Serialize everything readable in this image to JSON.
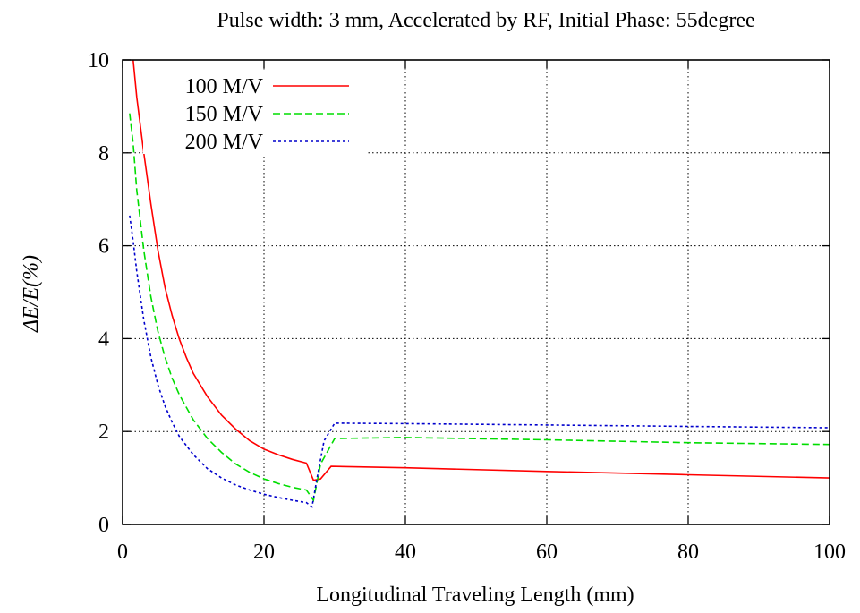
{
  "chart_data": {
    "type": "line",
    "title": "Pulse width: 3 mm, Accelerated by RF, Initial Phase: 55degree",
    "xlabel": "Longitudinal Traveling Length (mm)",
    "ylabel": "ΔE/E(%)",
    "xlim": [
      0,
      100
    ],
    "ylim": [
      0,
      10
    ],
    "xticks": [
      0,
      20,
      40,
      60,
      80,
      100
    ],
    "yticks": [
      0,
      2,
      4,
      6,
      8,
      10
    ],
    "grid": true,
    "legend_position": "top-left",
    "series": [
      {
        "name": "100 M/V",
        "color": "#ff0000",
        "dash": "solid",
        "points": [
          [
            1.5,
            10.0
          ],
          [
            2,
            9.2
          ],
          [
            3,
            8.0
          ],
          [
            4,
            6.9
          ],
          [
            5,
            5.9
          ],
          [
            6,
            5.1
          ],
          [
            7,
            4.5
          ],
          [
            8,
            4.0
          ],
          [
            9,
            3.6
          ],
          [
            10,
            3.25
          ],
          [
            12,
            2.75
          ],
          [
            14,
            2.35
          ],
          [
            16,
            2.05
          ],
          [
            18,
            1.8
          ],
          [
            20,
            1.62
          ],
          [
            22,
            1.5
          ],
          [
            24,
            1.4
          ],
          [
            26,
            1.32
          ],
          [
            27,
            0.95
          ],
          [
            28,
            0.98
          ],
          [
            29.5,
            1.25
          ],
          [
            40,
            1.22
          ],
          [
            60,
            1.14
          ],
          [
            80,
            1.07
          ],
          [
            100,
            1.0
          ]
        ]
      },
      {
        "name": "150 M/V",
        "color": "#00dd00",
        "dash": "dashed",
        "points": [
          [
            1,
            8.85
          ],
          [
            1.5,
            8.2
          ],
          [
            2,
            7.2
          ],
          [
            3,
            5.9
          ],
          [
            4,
            4.9
          ],
          [
            5,
            4.15
          ],
          [
            6,
            3.6
          ],
          [
            7,
            3.15
          ],
          [
            8,
            2.8
          ],
          [
            10,
            2.25
          ],
          [
            12,
            1.85
          ],
          [
            14,
            1.55
          ],
          [
            16,
            1.3
          ],
          [
            18,
            1.12
          ],
          [
            20,
            0.98
          ],
          [
            22,
            0.88
          ],
          [
            24,
            0.8
          ],
          [
            26,
            0.74
          ],
          [
            27,
            0.52
          ],
          [
            28,
            1.3
          ],
          [
            30,
            1.85
          ],
          [
            40,
            1.87
          ],
          [
            60,
            1.82
          ],
          [
            80,
            1.76
          ],
          [
            100,
            1.72
          ]
        ]
      },
      {
        "name": "200 M/V",
        "color": "#0000cc",
        "dash": "dotted",
        "points": [
          [
            1,
            6.65
          ],
          [
            1.5,
            6.1
          ],
          [
            2,
            5.45
          ],
          [
            3,
            4.4
          ],
          [
            4,
            3.6
          ],
          [
            5,
            3.0
          ],
          [
            6,
            2.55
          ],
          [
            7,
            2.2
          ],
          [
            8,
            1.9
          ],
          [
            10,
            1.5
          ],
          [
            12,
            1.2
          ],
          [
            14,
            1.0
          ],
          [
            16,
            0.85
          ],
          [
            18,
            0.74
          ],
          [
            20,
            0.65
          ],
          [
            22,
            0.58
          ],
          [
            24,
            0.52
          ],
          [
            26,
            0.47
          ],
          [
            26.8,
            0.38
          ],
          [
            27.5,
            1.0
          ],
          [
            28.5,
            1.8
          ],
          [
            30,
            2.18
          ],
          [
            40,
            2.17
          ],
          [
            60,
            2.14
          ],
          [
            80,
            2.11
          ],
          [
            100,
            2.08
          ]
        ]
      }
    ]
  }
}
